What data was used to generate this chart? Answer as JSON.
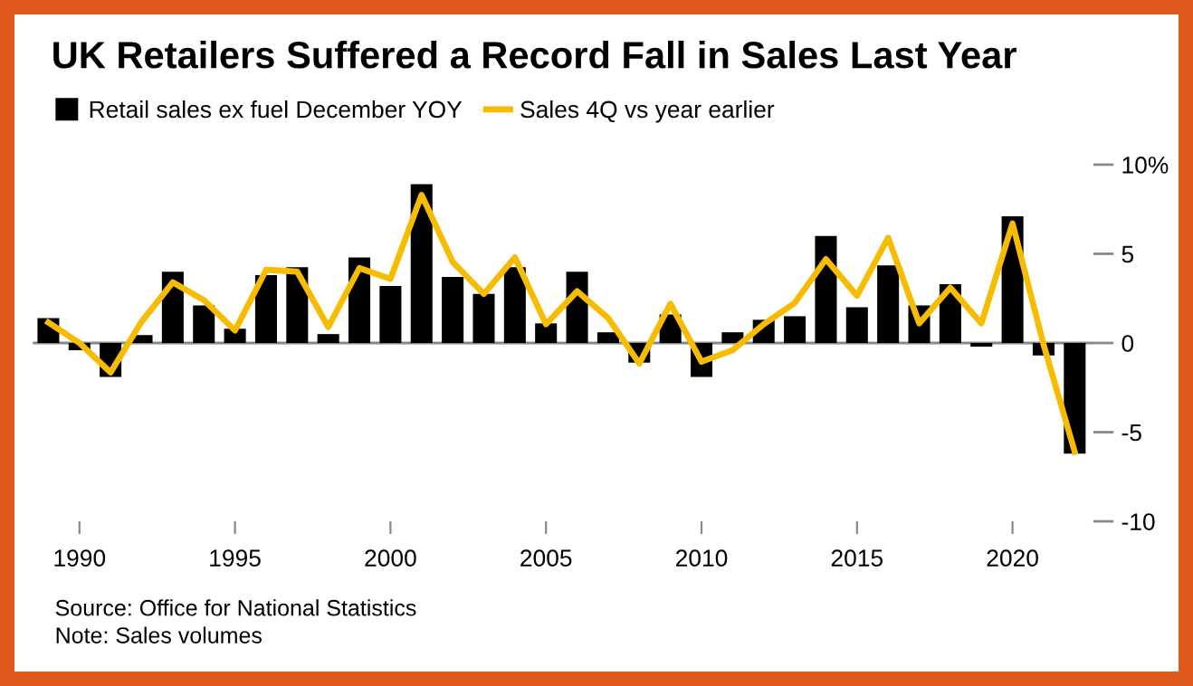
{
  "chart_data": {
    "type": "bar",
    "title": "UK Retailers Suffered a Record Fall in Sales Last Year",
    "x": [
      1989,
      1990,
      1991,
      1992,
      1993,
      1994,
      1995,
      1996,
      1997,
      1998,
      1999,
      2000,
      2001,
      2002,
      2003,
      2004,
      2005,
      2006,
      2007,
      2008,
      2009,
      2010,
      2011,
      2012,
      2013,
      2014,
      2015,
      2016,
      2017,
      2018,
      2019,
      2020,
      2021,
      2022
    ],
    "series": [
      {
        "name": "Retail sales ex fuel December YOY",
        "color": "#000000",
        "values": [
          1.4,
          -0.4,
          -1.9,
          0.45,
          4.0,
          2.1,
          0.8,
          3.8,
          4.25,
          0.5,
          4.8,
          3.2,
          8.9,
          3.7,
          2.75,
          4.25,
          1.1,
          4.0,
          0.6,
          -1.1,
          1.6,
          -1.9,
          0.6,
          1.3,
          1.5,
          6.0,
          2.0,
          4.35,
          2.1,
          3.3,
          -0.2,
          7.1,
          -0.7,
          -6.2
        ]
      },
      {
        "name": "Sales 4Q vs year earlier",
        "type": "line",
        "color": "#f7bb00",
        "values": [
          1.15,
          0.0,
          -1.65,
          1.2,
          3.4,
          2.4,
          0.7,
          4.1,
          4.0,
          0.9,
          4.2,
          3.6,
          8.3,
          4.55,
          2.75,
          4.8,
          1.05,
          2.9,
          1.4,
          -1.15,
          2.2,
          -1.05,
          -0.4,
          1.05,
          2.25,
          4.7,
          2.65,
          5.9,
          1.1,
          3.1,
          1.1,
          6.7,
          -0.1,
          -6.1
        ]
      }
    ],
    "xlim": [
      1988.5,
      2022.6
    ],
    "xticks": [
      1990,
      1995,
      2000,
      2005,
      2010,
      2015,
      2020
    ],
    "ylim": [
      -10,
      10
    ],
    "yticks": [
      {
        "value": 10,
        "label": "10%"
      },
      5,
      0,
      -5,
      -10
    ],
    "ref_lines": [
      {
        "axis": "y",
        "value": 0,
        "color": "#888888"
      }
    ],
    "grid": false,
    "legend": "top left",
    "marker": "none",
    "line_style": "solid",
    "annotations": [
      "Source: Office for National Statistics",
      "Note: Sales volumes"
    ]
  }
}
